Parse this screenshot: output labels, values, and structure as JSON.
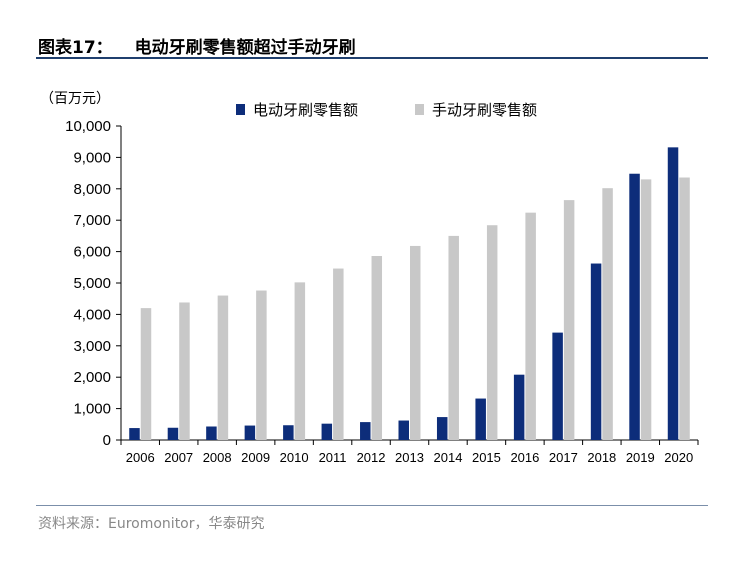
{
  "figure": {
    "label": "图表17：",
    "title": "电动牙刷零售额超过手动牙刷",
    "source": "资料来源：Euromonitor，华泰研究"
  },
  "chart_data": {
    "type": "bar",
    "unit_label": "（百万元）",
    "categories": [
      "2006",
      "2007",
      "2008",
      "2009",
      "2010",
      "2011",
      "2012",
      "2013",
      "2014",
      "2015",
      "2016",
      "2017",
      "2018",
      "2019",
      "2020"
    ],
    "series": [
      {
        "name": "电动牙刷零售额",
        "color": "#0d2d7a",
        "values": [
          380,
          390,
          430,
          460,
          470,
          520,
          570,
          620,
          730,
          1320,
          2080,
          3420,
          5620,
          8480,
          9320
        ]
      },
      {
        "name": "手动牙刷零售额",
        "color": "#c8c8c8",
        "values": [
          4200,
          4380,
          4600,
          4760,
          5020,
          5460,
          5860,
          6180,
          6500,
          6840,
          7240,
          7640,
          8020,
          8300,
          8360
        ]
      }
    ],
    "ylim": [
      0,
      10000
    ],
    "yticks": [
      0,
      1000,
      2000,
      3000,
      4000,
      5000,
      6000,
      7000,
      8000,
      9000,
      10000
    ],
    "ytick_labels": [
      "0",
      "1,000",
      "2,000",
      "3,000",
      "4,000",
      "5,000",
      "6,000",
      "7,000",
      "8,000",
      "9,000",
      "10,000"
    ],
    "grid": false,
    "legend_position": "top-center"
  }
}
